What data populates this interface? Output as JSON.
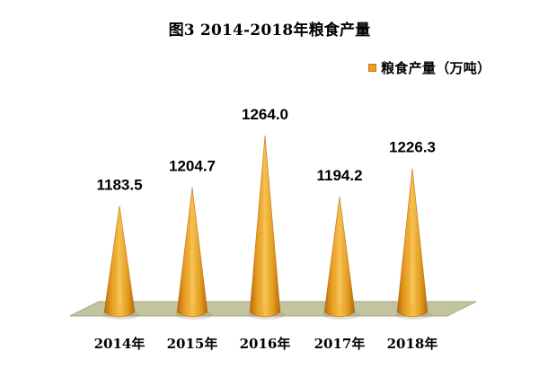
{
  "chart_data": {
    "type": "bar",
    "title": "图3  2014-2018年粮食产量",
    "categories": [
      "2014年",
      "2015年",
      "2016年",
      "2017年",
      "2018年"
    ],
    "series": [
      {
        "name": "粮食产量（万吨）",
        "values": [
          1183.5,
          1204.7,
          1264.0,
          1194.2,
          1226.3
        ]
      }
    ],
    "data_labels": [
      "1183.5",
      "1204.7",
      "1264.0",
      "1194.2",
      "1226.3"
    ],
    "legend": "top-right",
    "grid": false,
    "bar_shape": "cone",
    "ylim": [
      1060,
      1270
    ],
    "colors": {
      "cone_light": "#f4bf4a",
      "cone_mid": "#e29b20",
      "cone_dark": "#b8680a",
      "floor": "#c2c49f"
    }
  }
}
